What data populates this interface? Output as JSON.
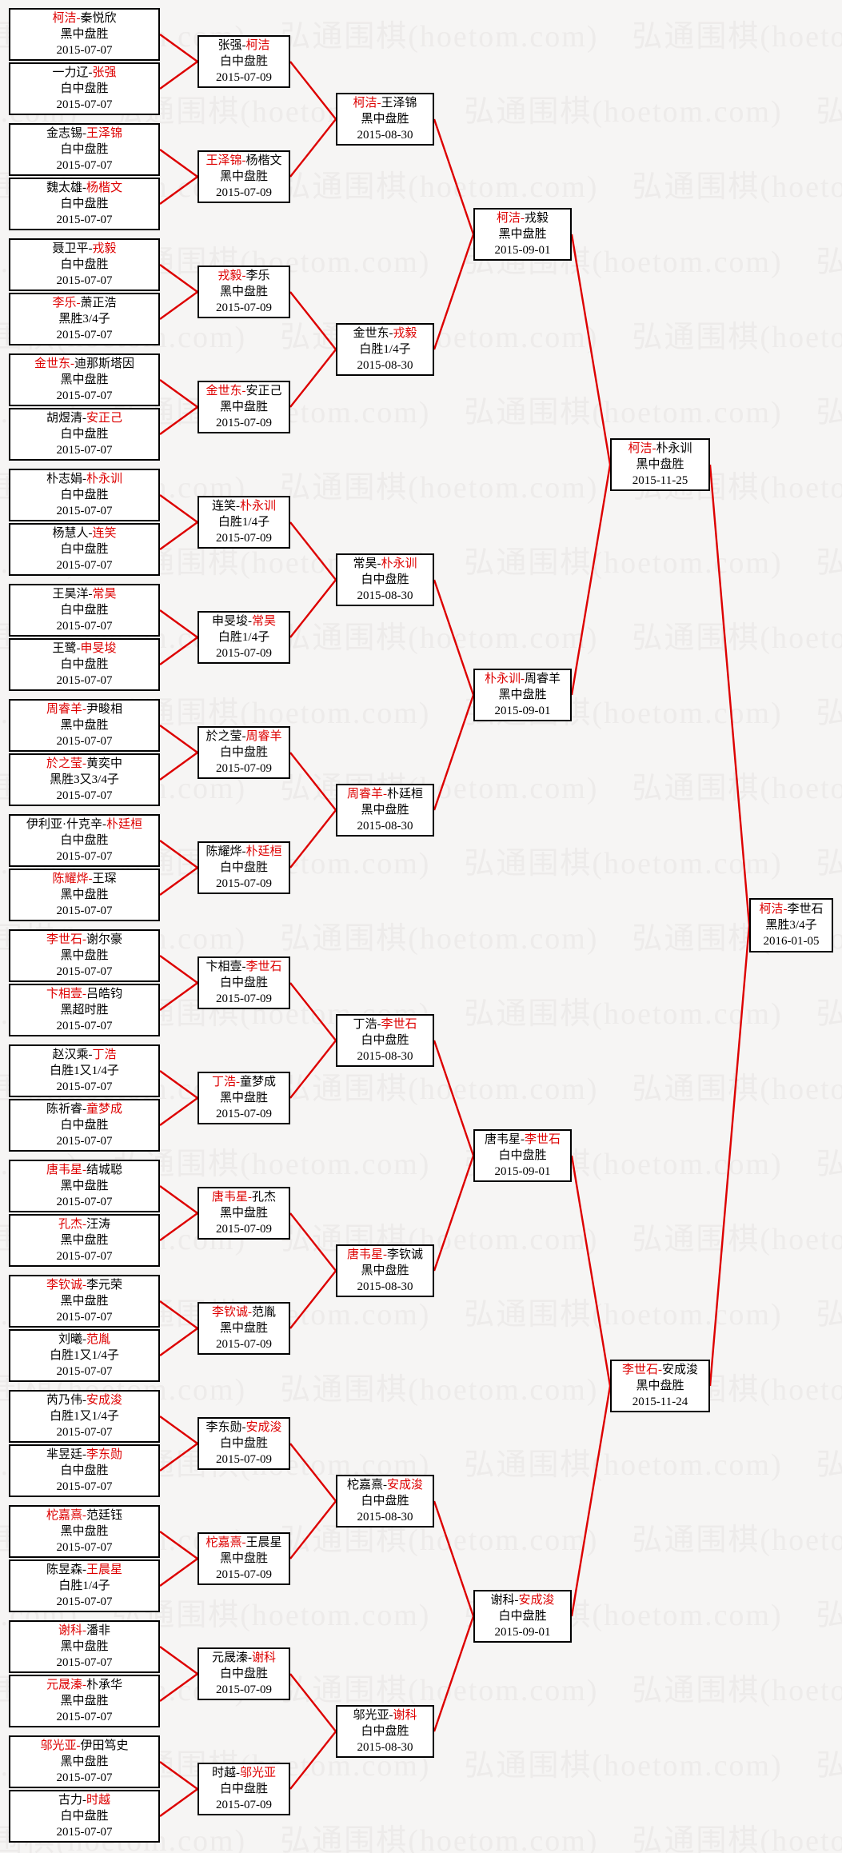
{
  "watermark": {
    "text": "弘通围棋(hoetom.com)",
    "color": "#edebea"
  },
  "separator": "-",
  "colors": {
    "winner_red": "#dd0000",
    "connector_red": "#dd0000",
    "box_border": "#000000",
    "text": "#000000",
    "background": "#f6f5f4"
  },
  "rounds": [
    {
      "matches": [
        {
          "p1": "柯洁",
          "p2": "秦悦欣",
          "w": 1,
          "result": "黑中盘胜",
          "date": "2015-07-07"
        },
        {
          "p1": "一力辽",
          "p2": "张强",
          "w": 2,
          "result": "白中盘胜",
          "date": "2015-07-07"
        },
        {
          "p1": "金志锡",
          "p2": "王泽锦",
          "w": 2,
          "result": "白中盘胜",
          "date": "2015-07-07"
        },
        {
          "p1": "魏太雄",
          "p2": "杨楷文",
          "w": 2,
          "result": "白中盘胜",
          "date": "2015-07-07"
        },
        {
          "p1": "聂卫平",
          "p2": "戎毅",
          "w": 2,
          "result": "白中盘胜",
          "date": "2015-07-07"
        },
        {
          "p1": "李乐",
          "p2": "萧正浩",
          "w": 1,
          "result": "黑胜3/4子",
          "date": "2015-07-07"
        },
        {
          "p1": "金世东",
          "p2": "迪那斯塔因",
          "w": 1,
          "result": "黑中盘胜",
          "date": "2015-07-07"
        },
        {
          "p1": "胡煜清",
          "p2": "安正己",
          "w": 2,
          "result": "白中盘胜",
          "date": "2015-07-07"
        },
        {
          "p1": "朴志娟",
          "p2": "朴永训",
          "w": 2,
          "result": "白中盘胜",
          "date": "2015-07-07"
        },
        {
          "p1": "杨慧人",
          "p2": "连笑",
          "w": 2,
          "result": "白中盘胜",
          "date": "2015-07-07"
        },
        {
          "p1": "王昊洋",
          "p2": "常昊",
          "w": 2,
          "result": "白中盘胜",
          "date": "2015-07-07"
        },
        {
          "p1": "王鹭",
          "p2": "申旻埈",
          "w": 2,
          "result": "白中盘胜",
          "date": "2015-07-07"
        },
        {
          "p1": "周睿羊",
          "p2": "尹畯相",
          "w": 1,
          "result": "黑中盘胜",
          "date": "2015-07-07"
        },
        {
          "p1": "於之莹",
          "p2": "黄奕中",
          "w": 1,
          "result": "黑胜3又3/4子",
          "date": "2015-07-07"
        },
        {
          "p1": "伊利亚·什克辛",
          "p2": "朴廷桓",
          "w": 2,
          "result": "白中盘胜",
          "date": "2015-07-07"
        },
        {
          "p1": "陈耀烨",
          "p2": "王琛",
          "w": 1,
          "result": "黑中盘胜",
          "date": "2015-07-07"
        },
        {
          "p1": "李世石",
          "p2": "谢尔豪",
          "w": 1,
          "result": "黑中盘胜",
          "date": "2015-07-07"
        },
        {
          "p1": "卞相壹",
          "p2": "吕皓钧",
          "w": 1,
          "result": "黑超时胜",
          "date": "2015-07-07"
        },
        {
          "p1": "赵汉乘",
          "p2": "丁浩",
          "w": 2,
          "result": "白胜1又1/4子",
          "date": "2015-07-07"
        },
        {
          "p1": "陈祈睿",
          "p2": "童梦成",
          "w": 2,
          "result": "白中盘胜",
          "date": "2015-07-07"
        },
        {
          "p1": "唐韦星",
          "p2": "结城聪",
          "w": 1,
          "result": "黑中盘胜",
          "date": "2015-07-07"
        },
        {
          "p1": "孔杰",
          "p2": "汪涛",
          "w": 1,
          "result": "黑中盘胜",
          "date": "2015-07-07"
        },
        {
          "p1": "李钦诚",
          "p2": "李元荣",
          "w": 1,
          "result": "黑中盘胜",
          "date": "2015-07-07"
        },
        {
          "p1": "刘曦",
          "p2": "范胤",
          "w": 2,
          "result": "白胜1又1/4子",
          "date": "2015-07-07"
        },
        {
          "p1": "芮乃伟",
          "p2": "安成浚",
          "w": 2,
          "result": "白胜1又1/4子",
          "date": "2015-07-07"
        },
        {
          "p1": "芈昱廷",
          "p2": "李东勋",
          "w": 2,
          "result": "白中盘胜",
          "date": "2015-07-07"
        },
        {
          "p1": "柁嘉熹",
          "p2": "范廷钰",
          "w": 1,
          "result": "黑中盘胜",
          "date": "2015-07-07"
        },
        {
          "p1": "陈昱森",
          "p2": "王晨星",
          "w": 2,
          "result": "白胜1/4子",
          "date": "2015-07-07"
        },
        {
          "p1": "谢科",
          "p2": "潘非",
          "w": 1,
          "result": "黑中盘胜",
          "date": "2015-07-07"
        },
        {
          "p1": "元晟溱",
          "p2": "朴承华",
          "w": 1,
          "result": "黑中盘胜",
          "date": "2015-07-07"
        },
        {
          "p1": "邬光亚",
          "p2": "伊田笃史",
          "w": 1,
          "result": "黑中盘胜",
          "date": "2015-07-07"
        },
        {
          "p1": "古力",
          "p2": "时越",
          "w": 2,
          "result": "白中盘胜",
          "date": "2015-07-07"
        }
      ]
    },
    {
      "matches": [
        {
          "p1": "张强",
          "p2": "柯洁",
          "w": 2,
          "result": "白中盘胜",
          "date": "2015-07-09"
        },
        {
          "p1": "王泽锦",
          "p2": "杨楷文",
          "w": 1,
          "result": "黑中盘胜",
          "date": "2015-07-09"
        },
        {
          "p1": "戎毅",
          "p2": "李乐",
          "w": 1,
          "result": "黑中盘胜",
          "date": "2015-07-09"
        },
        {
          "p1": "金世东",
          "p2": "安正己",
          "w": 1,
          "result": "黑中盘胜",
          "date": "2015-07-09"
        },
        {
          "p1": "连笑",
          "p2": "朴永训",
          "w": 2,
          "result": "白胜1/4子",
          "date": "2015-07-09"
        },
        {
          "p1": "申旻埈",
          "p2": "常昊",
          "w": 2,
          "result": "白胜1/4子",
          "date": "2015-07-09"
        },
        {
          "p1": "於之莹",
          "p2": "周睿羊",
          "w": 2,
          "result": "白中盘胜",
          "date": "2015-07-09"
        },
        {
          "p1": "陈耀烨",
          "p2": "朴廷桓",
          "w": 2,
          "result": "白中盘胜",
          "date": "2015-07-09"
        },
        {
          "p1": "卞相壹",
          "p2": "李世石",
          "w": 2,
          "result": "白中盘胜",
          "date": "2015-07-09"
        },
        {
          "p1": "丁浩",
          "p2": "童梦成",
          "w": 1,
          "result": "黑中盘胜",
          "date": "2015-07-09"
        },
        {
          "p1": "唐韦星",
          "p2": "孔杰",
          "w": 1,
          "result": "黑中盘胜",
          "date": "2015-07-09"
        },
        {
          "p1": "李钦诚",
          "p2": "范胤",
          "w": 1,
          "result": "黑中盘胜",
          "date": "2015-07-09"
        },
        {
          "p1": "李东勋",
          "p2": "安成浚",
          "w": 2,
          "result": "白中盘胜",
          "date": "2015-07-09"
        },
        {
          "p1": "柁嘉熹",
          "p2": "王晨星",
          "w": 1,
          "result": "黑中盘胜",
          "date": "2015-07-09"
        },
        {
          "p1": "元晟溱",
          "p2": "谢科",
          "w": 2,
          "result": "白中盘胜",
          "date": "2015-07-09"
        },
        {
          "p1": "时越",
          "p2": "邬光亚",
          "w": 2,
          "result": "白中盘胜",
          "date": "2015-07-09"
        }
      ]
    },
    {
      "matches": [
        {
          "p1": "柯洁",
          "p2": "王泽锦",
          "w": 1,
          "result": "黑中盘胜",
          "date": "2015-08-30"
        },
        {
          "p1": "金世东",
          "p2": "戎毅",
          "w": 2,
          "result": "白胜1/4子",
          "date": "2015-08-30"
        },
        {
          "p1": "常昊",
          "p2": "朴永训",
          "w": 2,
          "result": "白中盘胜",
          "date": "2015-08-30"
        },
        {
          "p1": "周睿羊",
          "p2": "朴廷桓",
          "w": 1,
          "result": "黑中盘胜",
          "date": "2015-08-30"
        },
        {
          "p1": "丁浩",
          "p2": "李世石",
          "w": 2,
          "result": "白中盘胜",
          "date": "2015-08-30"
        },
        {
          "p1": "唐韦星",
          "p2": "李钦诚",
          "w": 1,
          "result": "黑中盘胜",
          "date": "2015-08-30"
        },
        {
          "p1": "柁嘉熹",
          "p2": "安成浚",
          "w": 2,
          "result": "白中盘胜",
          "date": "2015-08-30"
        },
        {
          "p1": "邬光亚",
          "p2": "谢科",
          "w": 2,
          "result": "白中盘胜",
          "date": "2015-08-30"
        }
      ]
    },
    {
      "matches": [
        {
          "p1": "柯洁",
          "p2": "戎毅",
          "w": 1,
          "result": "黑中盘胜",
          "date": "2015-09-01"
        },
        {
          "p1": "朴永训",
          "p2": "周睿羊",
          "w": 1,
          "result": "黑中盘胜",
          "date": "2015-09-01"
        },
        {
          "p1": "唐韦星",
          "p2": "李世石",
          "w": 2,
          "result": "白中盘胜",
          "date": "2015-09-01"
        },
        {
          "p1": "谢科",
          "p2": "安成浚",
          "w": 2,
          "result": "白中盘胜",
          "date": "2015-09-01"
        }
      ]
    },
    {
      "matches": [
        {
          "p1": "柯洁",
          "p2": "朴永训",
          "w": 1,
          "result": "黑中盘胜",
          "date": "2015-11-25"
        },
        {
          "p1": "李世石",
          "p2": "安成浚",
          "w": 1,
          "result": "黑中盘胜",
          "date": "2015-11-24"
        }
      ]
    },
    {
      "matches": [
        {
          "p1": "柯洁",
          "p2": "李世石",
          "w": 1,
          "result": "黑胜3/4子",
          "date": "2016-01-05"
        }
      ]
    }
  ]
}
